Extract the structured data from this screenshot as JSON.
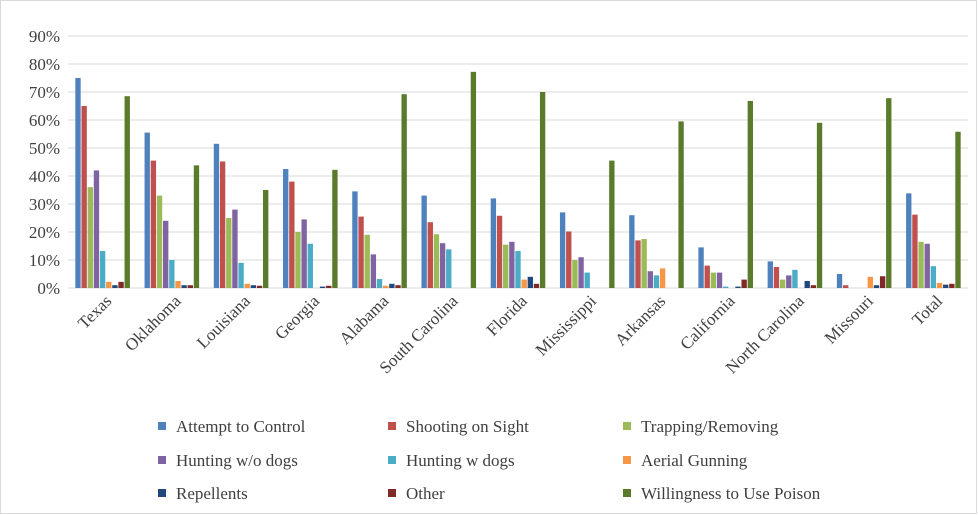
{
  "chart_data": {
    "type": "bar",
    "title": "",
    "xlabel": "",
    "ylabel": "",
    "ylim": [
      0,
      90
    ],
    "y_tick_step": 10,
    "y_tick_suffix": "%",
    "grid": true,
    "legend_position": "bottom",
    "categories": [
      "Texas",
      "Oklahoma",
      "Louisiana",
      "Georgia",
      "Alabama",
      "South Carolina",
      "Florida",
      "Mississippi",
      "Arkansas",
      "California",
      "North Carolina",
      "Missouri",
      "Total"
    ],
    "series": [
      {
        "name": "Attempt to Control",
        "color": "#4f81bd",
        "values": [
          75,
          55.5,
          51.5,
          42.5,
          34.5,
          33,
          32,
          27,
          26,
          14.5,
          9.5,
          5,
          33.8
        ]
      },
      {
        "name": "Shooting on Sight",
        "color": "#c0504d",
        "values": [
          65,
          45.5,
          45.2,
          38,
          25.5,
          23.5,
          25.8,
          20.2,
          17,
          8,
          7.5,
          1,
          26.2
        ]
      },
      {
        "name": "Trapping/Removing",
        "color": "#9bbb59",
        "values": [
          36,
          33,
          25,
          20,
          19,
          19.2,
          15.5,
          10,
          17.5,
          5.5,
          3,
          0,
          16.5
        ]
      },
      {
        "name": "Hunting w/o dogs",
        "color": "#8064a2",
        "values": [
          42,
          24,
          28,
          24.5,
          12,
          16,
          16.5,
          11,
          6,
          5.5,
          4.5,
          0,
          15.8
        ]
      },
      {
        "name": "Hunting w dogs",
        "color": "#4bacc6",
        "values": [
          13.2,
          10,
          9,
          15.8,
          3.2,
          13.8,
          13.2,
          5.5,
          4.5,
          0.5,
          6.5,
          0,
          7.8
        ]
      },
      {
        "name": "Aerial Gunning",
        "color": "#f79646",
        "values": [
          2.2,
          2.5,
          1.5,
          0,
          0.8,
          0,
          3,
          0,
          7,
          0,
          0,
          4,
          1.8
        ]
      },
      {
        "name": "Repellents",
        "color": "#1f497d",
        "values": [
          1,
          1,
          1,
          0.5,
          1.5,
          0,
          4,
          0,
          0,
          0.5,
          2.5,
          1,
          1.2
        ]
      },
      {
        "name": "Other",
        "color": "#7f2a27",
        "values": [
          2.2,
          1,
          0.8,
          0.8,
          1,
          0,
          1.5,
          0,
          0,
          3,
          1,
          4.2,
          1.5
        ]
      },
      {
        "name": "Willingness to Use Poison",
        "color": "#5a7a2c",
        "values": [
          68.5,
          43.8,
          35,
          42.2,
          69.2,
          77.2,
          70,
          45.5,
          59.5,
          66.8,
          59,
          67.8,
          55.8
        ]
      }
    ]
  }
}
